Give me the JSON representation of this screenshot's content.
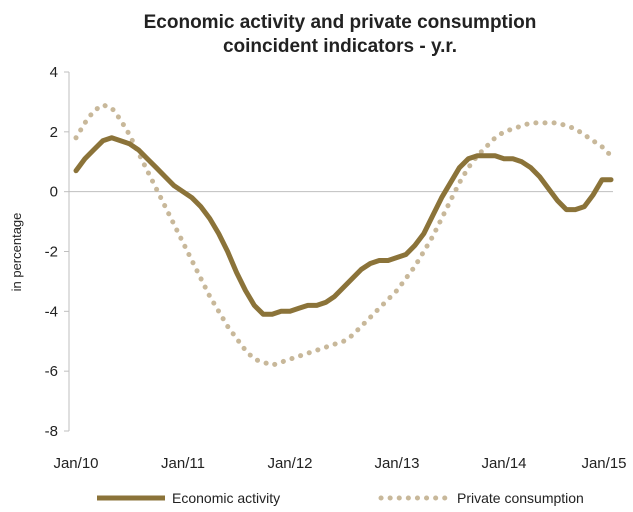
{
  "chart_data": {
    "type": "line",
    "title_line1": "Economic activity and private consumption",
    "title_line2": "coincident indicators - y.r.",
    "ylabel": "in percentage",
    "xlabel": "",
    "ylim": [
      -8,
      4
    ],
    "yticks": [
      "4",
      "2",
      "0",
      "-2",
      "-4",
      "-6",
      "-8"
    ],
    "ytick_values": [
      4,
      2,
      0,
      -2,
      -4,
      -6,
      -8
    ],
    "xticks": [
      "Jan/10",
      "Jan/11",
      "Jan/12",
      "Jan/13",
      "Jan/14",
      "Jan/15"
    ],
    "xtick_values": [
      0,
      12,
      24,
      36,
      48,
      60
    ],
    "xlim": [
      0,
      60
    ],
    "grid": false,
    "legend_position": "bottom",
    "series": [
      {
        "name": "Economic activity",
        "style": "solid",
        "color": "#8B7339",
        "x": [
          0,
          1,
          2,
          3,
          4,
          5,
          6,
          7,
          8,
          9,
          10,
          11,
          12,
          13,
          14,
          15,
          16,
          17,
          18,
          19,
          20,
          21,
          22,
          23,
          24,
          25,
          26,
          27,
          28,
          29,
          30,
          31,
          32,
          33,
          34,
          35,
          36,
          37,
          38,
          39,
          40,
          41,
          42,
          43,
          44,
          45,
          46,
          47,
          48,
          49,
          50,
          51,
          52,
          53,
          54,
          55,
          56,
          57,
          58,
          59,
          60
        ],
        "values": [
          0.7,
          1.1,
          1.4,
          1.7,
          1.8,
          1.7,
          1.6,
          1.4,
          1.1,
          0.8,
          0.5,
          0.2,
          0.0,
          -0.2,
          -0.5,
          -0.9,
          -1.4,
          -2.0,
          -2.7,
          -3.3,
          -3.8,
          -4.1,
          -4.1,
          -4.0,
          -4.0,
          -3.9,
          -3.8,
          -3.8,
          -3.7,
          -3.5,
          -3.2,
          -2.9,
          -2.6,
          -2.4,
          -2.3,
          -2.3,
          -2.2,
          -2.1,
          -1.8,
          -1.4,
          -0.8,
          -0.2,
          0.3,
          0.8,
          1.1,
          1.2,
          1.2,
          1.2,
          1.1,
          1.1,
          1.0,
          0.8,
          0.5,
          0.1,
          -0.3,
          -0.6,
          -0.6,
          -0.5,
          -0.1,
          0.4,
          0.4
        ]
      },
      {
        "name": "Private consumption",
        "style": "dotted",
        "color": "#C8B89A",
        "x": [
          0,
          1,
          2,
          3,
          4,
          5,
          6,
          7,
          8,
          9,
          10,
          11,
          12,
          13,
          14,
          15,
          16,
          17,
          18,
          19,
          20,
          21,
          22,
          23,
          24,
          25,
          26,
          27,
          28,
          29,
          30,
          31,
          32,
          33,
          34,
          35,
          36,
          37,
          38,
          39,
          40,
          41,
          42,
          43,
          44,
          45,
          46,
          47,
          48,
          49,
          50,
          51,
          52,
          53,
          54,
          55,
          56,
          57,
          58,
          59,
          60
        ],
        "values": [
          1.8,
          2.3,
          2.7,
          2.9,
          2.8,
          2.4,
          1.9,
          1.3,
          0.7,
          0.1,
          -0.5,
          -1.1,
          -1.7,
          -2.3,
          -2.9,
          -3.5,
          -4.0,
          -4.5,
          -4.9,
          -5.3,
          -5.6,
          -5.7,
          -5.8,
          -5.7,
          -5.6,
          -5.5,
          -5.4,
          -5.3,
          -5.2,
          -5.1,
          -5.0,
          -4.8,
          -4.5,
          -4.2,
          -3.9,
          -3.6,
          -3.3,
          -2.9,
          -2.5,
          -2.0,
          -1.5,
          -0.9,
          -0.3,
          0.3,
          0.8,
          1.2,
          1.5,
          1.8,
          2.0,
          2.1,
          2.2,
          2.3,
          2.3,
          2.3,
          2.3,
          2.2,
          2.1,
          1.9,
          1.7,
          1.5,
          1.2
        ]
      }
    ]
  }
}
